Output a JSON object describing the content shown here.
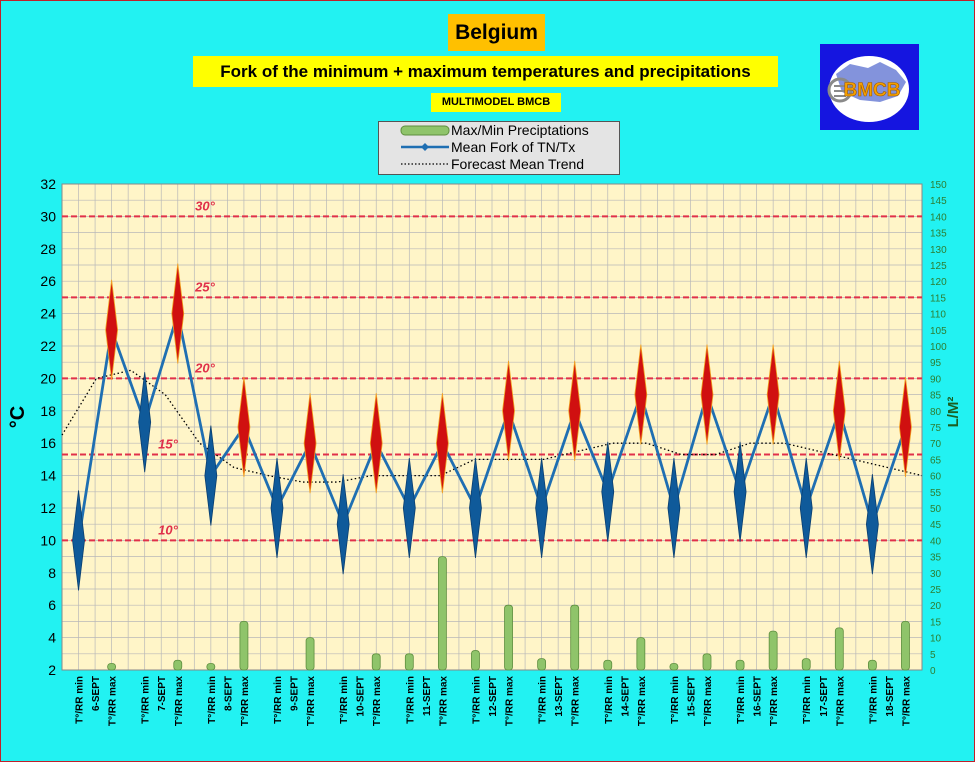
{
  "title": "Belgium",
  "subtitle": "Fork of the minimum + maximum temperatures and precipitations",
  "model": "MULTIMODEL BMCB",
  "logo_text": "BMCB",
  "legend": {
    "precip": "Max/Min Preciptations",
    "mean": "Mean Fork of TN/Tx",
    "trend": "Forecast Mean Trend"
  },
  "colors": {
    "background": "#22f2f2",
    "plot_area": "#fff5c8",
    "mean_line": "#1f6fb2",
    "min_fork": "#0f5a9a",
    "max_fork": "#d01010",
    "ref_line": "#e0304a",
    "precip_bar": "#8fc46a"
  },
  "chart_data": {
    "type": "line",
    "ylabel": "°C",
    "y2label": "L/M²",
    "ylim": [
      2,
      32
    ],
    "y2lim": [
      0,
      150
    ],
    "grid": true,
    "legend_position": "top-center",
    "reference_lines": [
      {
        "value": 30,
        "label": "30°"
      },
      {
        "value": 25,
        "label": "25°"
      },
      {
        "value": 20,
        "label": "20°"
      },
      {
        "value": 15.3,
        "label": "15°"
      },
      {
        "value": 10,
        "label": "10°"
      }
    ],
    "days": [
      {
        "date": "6-SEPT",
        "min_label": "T°/RR min",
        "max_label": "T°/RR max",
        "tmin": 10,
        "tmax": 23,
        "rr_min": 0,
        "rr_max": 2
      },
      {
        "date": "7-SEPT",
        "min_label": "T°/RR min",
        "max_label": "T°/RR max",
        "tmin": 17.3,
        "tmax": 24,
        "rr_min": 0,
        "rr_max": 3
      },
      {
        "date": "8-SEPT",
        "min_label": "T°/RR min",
        "max_label": "T°/RR max",
        "tmin": 14,
        "tmax": 17,
        "rr_min": 2,
        "rr_max": 15
      },
      {
        "date": "9-SEPT",
        "min_label": "T°/RR min",
        "max_label": "T°/RR max",
        "tmin": 12,
        "tmax": 16,
        "rr_min": 0,
        "rr_max": 10
      },
      {
        "date": "10-SEPT",
        "min_label": "T°/RR min",
        "max_label": "T°/RR max",
        "tmin": 11,
        "tmax": 16,
        "rr_min": 0,
        "rr_max": 5
      },
      {
        "date": "11-SEPT",
        "min_label": "T°/RR min",
        "max_label": "T°/RR max",
        "tmin": 12,
        "tmax": 16,
        "rr_min": 5,
        "rr_max": 35
      },
      {
        "date": "12-SEPT",
        "min_label": "T°/RR min",
        "max_label": "T°/RR max",
        "tmin": 12,
        "tmax": 18,
        "rr_min": 6,
        "rr_max": 20
      },
      {
        "date": "13-SEPT",
        "min_label": "T°/RR min",
        "max_label": "T°/RR max",
        "tmin": 12,
        "tmax": 18,
        "rr_min": 3.5,
        "rr_max": 20
      },
      {
        "date": "14-SEPT",
        "min_label": "T°/RR min",
        "max_label": "T°/RR max",
        "tmin": 13,
        "tmax": 19,
        "rr_min": 3,
        "rr_max": 10
      },
      {
        "date": "15-SEPT",
        "min_label": "T°/RR min",
        "max_label": "T°/RR max",
        "tmin": 12,
        "tmax": 19,
        "rr_min": 2,
        "rr_max": 5
      },
      {
        "date": "16-SEPT",
        "min_label": "T°/RR min",
        "max_label": "T°/RR max",
        "tmin": 13,
        "tmax": 19,
        "rr_min": 3,
        "rr_max": 12
      },
      {
        "date": "17-SEPT",
        "min_label": "T°/RR min",
        "max_label": "T°/RR max",
        "tmin": 12,
        "tmax": 18,
        "rr_min": 3.5,
        "rr_max": 13
      },
      {
        "date": "18-SEPT",
        "min_label": "T°/RR min",
        "max_label": "T°/RR max",
        "tmin": 11,
        "tmax": 17,
        "rr_min": 3,
        "rr_max": 15
      }
    ],
    "trend": [
      16.5,
      20,
      20.5,
      19,
      16,
      14.5,
      14,
      13.6,
      13.6,
      14,
      14,
      14,
      15,
      15,
      15,
      15.5,
      16,
      16,
      15.3,
      15.3,
      16,
      16,
      15.5,
      15,
      14.5,
      14
    ]
  }
}
